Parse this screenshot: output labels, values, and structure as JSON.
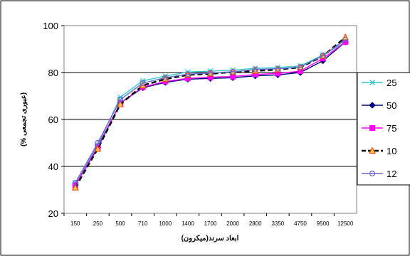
{
  "chart_data": {
    "type": "line",
    "xlabel": "ابعاد سرند(میکرون)",
    "ylabel": "(عبوری تجمعی %)",
    "ylim": [
      20,
      100
    ],
    "yticks": [
      20,
      40,
      60,
      80,
      100
    ],
    "grid": "horizontal",
    "legend_position": "right",
    "categories": [
      "150",
      "250",
      "500",
      "710",
      "1000",
      "1400",
      "1700",
      "2000",
      "2800",
      "3350",
      "4750",
      "9500",
      "12500"
    ],
    "series": [
      {
        "name": "25",
        "color": "#33cccc",
        "marker": "asterisk",
        "dash": "solid",
        "values": [
          33,
          49,
          69.5,
          76.5,
          78.5,
          80.2,
          80.6,
          81.0,
          81.8,
          82.1,
          82.8,
          87.5,
          93
        ]
      },
      {
        "name": "50",
        "color": "#000080",
        "marker": "diamond",
        "dash": "solid",
        "values": [
          32,
          48,
          67,
          73.5,
          75.8,
          77.2,
          77.5,
          77.8,
          78.6,
          79.0,
          80.0,
          85,
          93
        ]
      },
      {
        "name": "75",
        "color": "#ff00ff",
        "marker": "square",
        "dash": "solid",
        "values": [
          32,
          48.5,
          67,
          73.8,
          76.2,
          77.5,
          78.0,
          78.3,
          79.2,
          79.6,
          80.6,
          86,
          93
        ]
      },
      {
        "name": "10",
        "color": "#000000",
        "marker": "triangle",
        "dash": "dashed",
        "values": [
          31,
          47.5,
          66.5,
          74.5,
          77.2,
          79.0,
          79.5,
          80.2,
          80.7,
          81.3,
          82.2,
          87,
          95
        ]
      },
      {
        "name": "12",
        "color": "#6666cc",
        "marker": "circle",
        "dash": "solid",
        "values": [
          33,
          50,
          68.5,
          75.5,
          77.8,
          79.3,
          79.8,
          80.3,
          81.3,
          81.6,
          82.3,
          87.2,
          94
        ]
      }
    ]
  }
}
